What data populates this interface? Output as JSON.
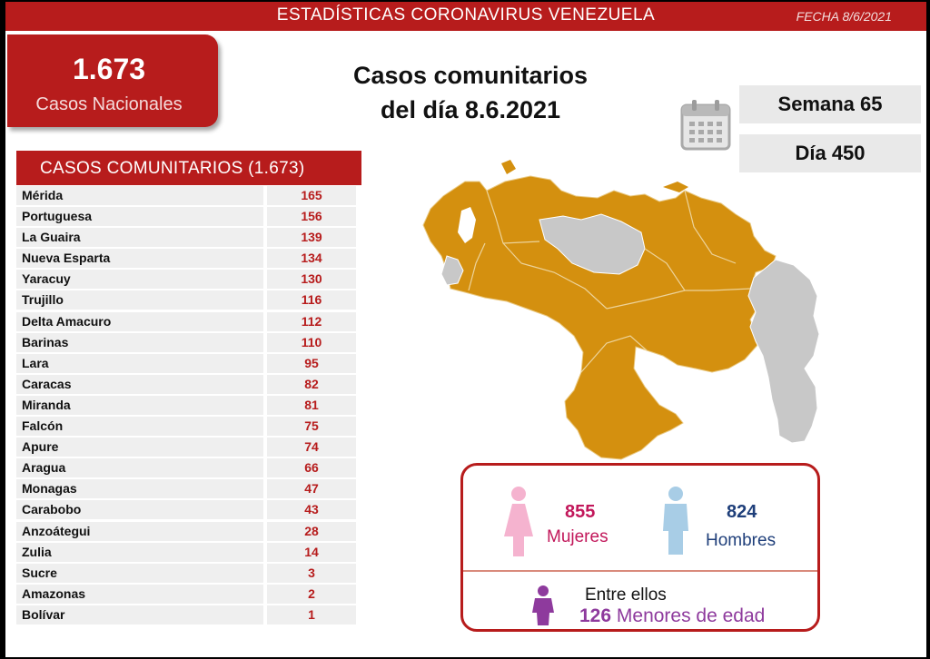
{
  "header": {
    "title": "ESTADÍSTICAS CORONAVIRUS VENEZUELA",
    "date": "FECHA 8/6/2021"
  },
  "national": {
    "count": "1.673",
    "label": "Casos Nacionales"
  },
  "headline": {
    "line1": "Casos comunitarios",
    "line2": "del día 8.6.2021"
  },
  "week": {
    "label": "Semana 65"
  },
  "day": {
    "label": "Día 450"
  },
  "table": {
    "title": "CASOS COMUNITARIOS (1.673)",
    "rows": [
      {
        "state": "Mérida",
        "cases": "165"
      },
      {
        "state": "Portuguesa",
        "cases": "156"
      },
      {
        "state": "La Guaira",
        "cases": "139"
      },
      {
        "state": "Nueva Esparta",
        "cases": "134"
      },
      {
        "state": "Yaracuy",
        "cases": "130"
      },
      {
        "state": "Trujillo",
        "cases": "116"
      },
      {
        "state": "Delta Amacuro",
        "cases": "112"
      },
      {
        "state": "Barinas",
        "cases": "110"
      },
      {
        "state": "Lara",
        "cases": "95"
      },
      {
        "state": "Caracas",
        "cases": "82"
      },
      {
        "state": "Miranda",
        "cases": "81"
      },
      {
        "state": "Falcón",
        "cases": "75"
      },
      {
        "state": "Apure",
        "cases": "74"
      },
      {
        "state": "Aragua",
        "cases": "66"
      },
      {
        "state": "Monagas",
        "cases": "47"
      },
      {
        "state": "Carabobo",
        "cases": "43"
      },
      {
        "state": "Anzoátegui",
        "cases": "28"
      },
      {
        "state": "Zulia",
        "cases": "14"
      },
      {
        "state": "Sucre",
        "cases": "3"
      },
      {
        "state": "Amazonas",
        "cases": "2"
      },
      {
        "state": "Bolívar",
        "cases": "1"
      }
    ]
  },
  "gender": {
    "female_count": "855",
    "female_label": "Mujeres",
    "male_count": "824",
    "male_label": "Hombres",
    "minors_pre": "Entre ellos",
    "minors_count": "126",
    "minors_label": "Menores de edad"
  },
  "colors": {
    "brand_red": "#b71c1c",
    "map_with_cases": "#d4900f",
    "map_no_data": "#c8c8c8",
    "female": "#f5b3cf",
    "male": "#a8cde6",
    "minor": "#8e3a9d"
  },
  "icons": {
    "calendar": "calendar-icon",
    "female": "female-figure-icon",
    "male": "male-figure-icon",
    "minor": "child-figure-icon"
  }
}
